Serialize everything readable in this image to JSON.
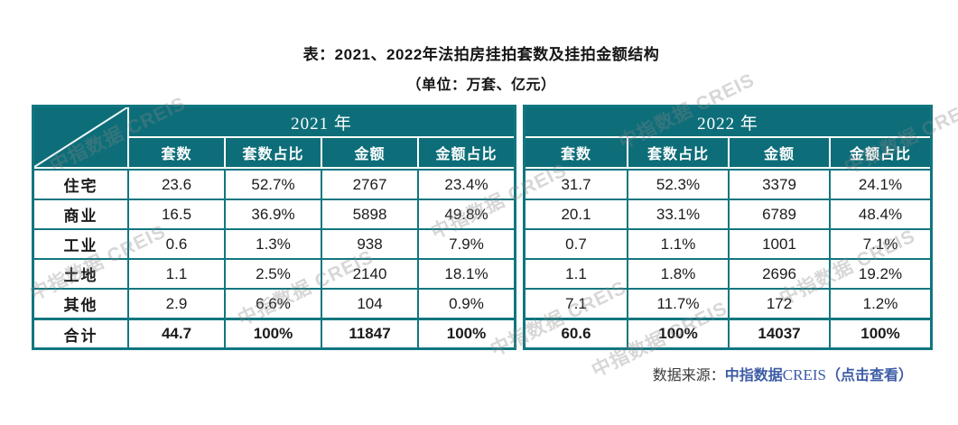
{
  "chart_data": {
    "type": "table",
    "title": "表：2021、2022年法拍房挂拍套数及挂拍金额结构",
    "subtitle": "（单位：万套、亿元）",
    "year_groups": [
      "2021 年",
      "2022 年"
    ],
    "sub_columns": [
      "套数",
      "套数占比",
      "金额",
      "金额占比"
    ],
    "rows": [
      {
        "label": "住宅",
        "values_2021": [
          "23.6",
          "52.7%",
          "2767",
          "23.4%"
        ],
        "values_2022": [
          "31.7",
          "52.3%",
          "3379",
          "24.1%"
        ],
        "is_total": false
      },
      {
        "label": "商业",
        "values_2021": [
          "16.5",
          "36.9%",
          "5898",
          "49.8%"
        ],
        "values_2022": [
          "20.1",
          "33.1%",
          "6789",
          "48.4%"
        ],
        "is_total": false
      },
      {
        "label": "工业",
        "values_2021": [
          "0.6",
          "1.3%",
          "938",
          "7.9%"
        ],
        "values_2022": [
          "0.7",
          "1.1%",
          "1001",
          "7.1%"
        ],
        "is_total": false
      },
      {
        "label": "土地",
        "values_2021": [
          "1.1",
          "2.5%",
          "2140",
          "18.1%"
        ],
        "values_2022": [
          "1.1",
          "1.8%",
          "2696",
          "19.2%"
        ],
        "is_total": false
      },
      {
        "label": "其他",
        "values_2021": [
          "2.9",
          "6.6%",
          "104",
          "0.9%"
        ],
        "values_2022": [
          "7.1",
          "11.7%",
          "172",
          "1.2%"
        ],
        "is_total": false
      },
      {
        "label": "合计",
        "values_2021": [
          "44.7",
          "100%",
          "11847",
          "100%"
        ],
        "values_2022": [
          "60.6",
          "100%",
          "14037",
          "100%"
        ],
        "is_total": true
      }
    ]
  },
  "source": {
    "prefix": "数据来源：",
    "name_cn": "中指数据",
    "name_en": "CREIS",
    "link_label": "（点击查看）"
  },
  "watermark": {
    "text": "中指数据 CREIS"
  },
  "colors": {
    "header_teal": "#0d6e79",
    "border_teal": "#11767f",
    "link_blue": "#3d5ca6",
    "watermark_gray": "#878787"
  }
}
